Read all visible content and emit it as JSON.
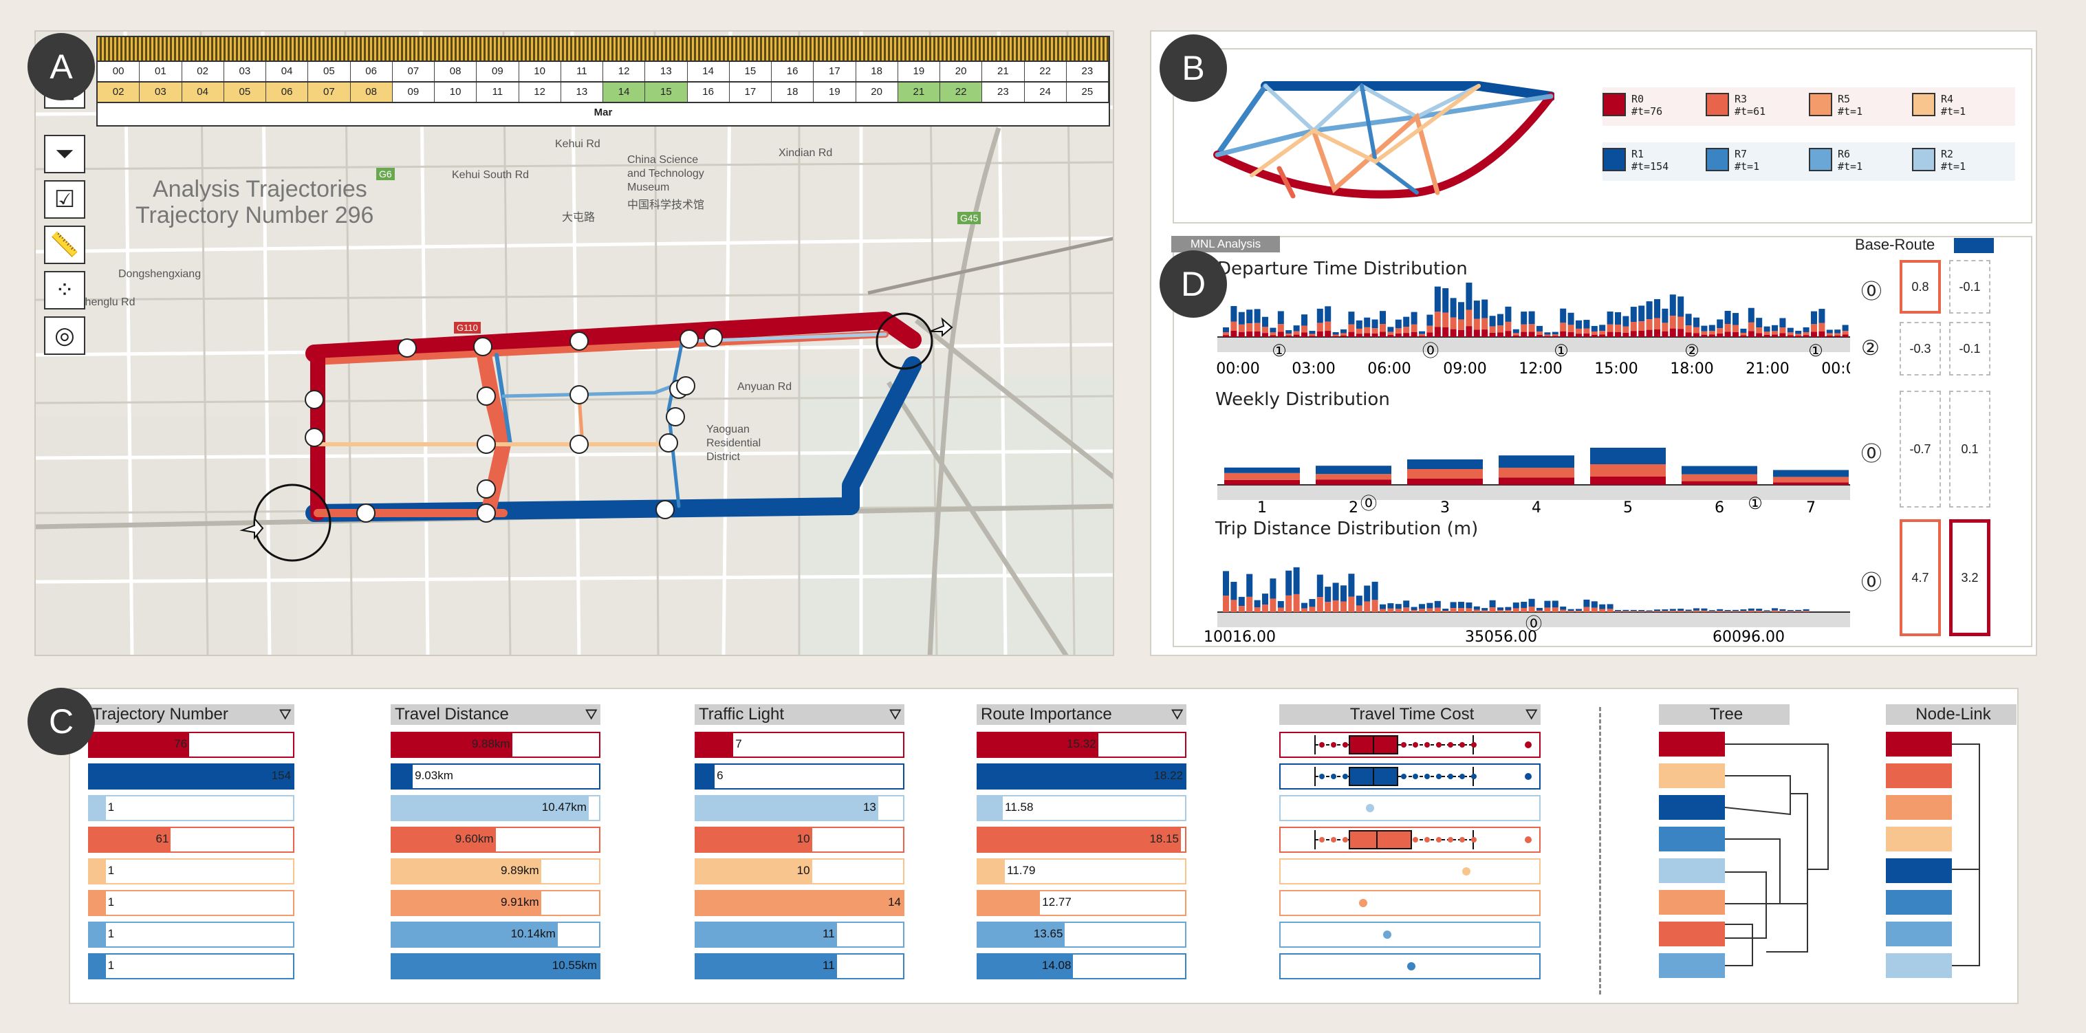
{
  "badges": {
    "a": "A",
    "b": "B",
    "c": "C",
    "d": "D"
  },
  "panel_a": {
    "title_line1": "Analysis Trajectories",
    "title_line2": "Trajectory Number  296",
    "hours_row": [
      "00",
      "01",
      "02",
      "03",
      "04",
      "05",
      "06",
      "07",
      "08",
      "09",
      "10",
      "11",
      "12",
      "13",
      "14",
      "15",
      "16",
      "17",
      "18",
      "19",
      "20",
      "21",
      "22",
      "23"
    ],
    "days_row": [
      "02",
      "03",
      "04",
      "05",
      "06",
      "07",
      "08",
      "09",
      "10",
      "11",
      "12",
      "13",
      "14",
      "15",
      "16",
      "17",
      "18",
      "19",
      "20",
      "21",
      "22",
      "23",
      "24",
      "25"
    ],
    "month": "Mar",
    "tools": [
      "camera-icon",
      "edit-icon",
      "filter-icon",
      "checkbox-icon",
      "ruler-icon",
      "cluster-icon",
      "target-icon"
    ],
    "labels": [
      {
        "id": "kehui",
        "text": "Kehui Rd"
      },
      {
        "id": "kehuisouth",
        "text": "Kehui South Rd"
      },
      {
        "id": "xindian",
        "text": "Xindian Rd"
      },
      {
        "id": "museum1",
        "text": "China Science"
      },
      {
        "id": "museum2",
        "text": "and Technology"
      },
      {
        "id": "museum3",
        "text": "Museum"
      },
      {
        "id": "museum4",
        "text": "中国科学技术馆"
      },
      {
        "id": "dadun",
        "text": "大屯路"
      },
      {
        "id": "dongsheng",
        "text": "Dongshengxiang"
      },
      {
        "id": "chenglu",
        "text": "Chenglu Rd"
      },
      {
        "id": "anyuan",
        "text": "Anyuan Rd"
      },
      {
        "id": "yaoguan1",
        "text": "Yaoguan"
      },
      {
        "id": "yaoguan2",
        "text": "Residential"
      },
      {
        "id": "yaoguan3",
        "text": "District"
      },
      {
        "id": "g6",
        "text": "G6"
      },
      {
        "id": "g45",
        "text": "G45"
      },
      {
        "id": "g110",
        "text": "G110"
      }
    ]
  },
  "panel_b": {
    "legend": [
      {
        "name": "R0",
        "count": "#t=76",
        "color": "#b2001e"
      },
      {
        "name": "R3",
        "count": "#t=61",
        "color": "#e8644a"
      },
      {
        "name": "R5",
        "count": "#t=1",
        "color": "#f39b6b"
      },
      {
        "name": "R4",
        "count": "#t=1",
        "color": "#f8c58e"
      },
      {
        "name": "R1",
        "count": "#t=154",
        "color": "#0a4f9c"
      },
      {
        "name": "R7",
        "count": "#t=1",
        "color": "#3a84c3"
      },
      {
        "name": "R6",
        "count": "#t=1",
        "color": "#6aa6d6"
      },
      {
        "name": "R2",
        "count": "#t=1",
        "color": "#a8cbe6"
      }
    ]
  },
  "panel_d": {
    "tab": "MNL Analysis",
    "base_route": "Base-Route",
    "departure_title": "Departure Time Distribution",
    "departure_ticks": [
      "00:00",
      "03:00",
      "06:00",
      "09:00",
      "12:00",
      "15:00",
      "18:00",
      "21:00",
      "00:00"
    ],
    "weekly_title": "Weekly Distribution",
    "weekly_ticks": [
      "1",
      "2",
      "3",
      "4",
      "5",
      "6",
      "7"
    ],
    "distance_title": "Trip Distance Distribution (m)",
    "distance_ticks": [
      "10016.00",
      "35056.00",
      "60096.00"
    ],
    "markers_dep": [
      "①",
      "⓪",
      "①",
      "②",
      "①"
    ],
    "markers_week": [
      "⓪",
      "①"
    ],
    "markers_dist": [
      "⓪"
    ],
    "rows": [
      {
        "marker": "⓪",
        "v1": "0.8",
        "v2": "-0.1"
      },
      {
        "marker": "②",
        "v1": "-0.3",
        "v2": "-0.1"
      },
      {
        "marker": "⓪",
        "v1": "-0.7",
        "v2": "0.1"
      },
      {
        "marker": "⓪",
        "v1": "4.7",
        "v2": "3.2"
      }
    ]
  },
  "panel_c": {
    "headers": [
      "Trajectory Number",
      "Travel Distance",
      "Traffic Light",
      "Route Importance",
      "Travel Time Cost",
      "Tree",
      "Node-Link"
    ],
    "rows": [
      {
        "color": "#b2001e",
        "traj": "76",
        "dist": "9.88km",
        "light": "7",
        "imp": "15.32"
      },
      {
        "color": "#0a4f9c",
        "traj": "154",
        "dist": "9.03km",
        "light": "6",
        "imp": "18.22"
      },
      {
        "color": "#a8cbe6",
        "traj": "1",
        "dist": "10.47km",
        "light": "13",
        "imp": "11.58"
      },
      {
        "color": "#e8644a",
        "traj": "61",
        "dist": "9.60km",
        "light": "10",
        "imp": "18.15"
      },
      {
        "color": "#f8c58e",
        "traj": "1",
        "dist": "9.89km",
        "light": "10",
        "imp": "11.79"
      },
      {
        "color": "#f39b6b",
        "traj": "1",
        "dist": "9.91km",
        "light": "14",
        "imp": "12.77"
      },
      {
        "color": "#6aa6d6",
        "traj": "1",
        "dist": "10.14km",
        "light": "11",
        "imp": "13.65"
      },
      {
        "color": "#3a84c3",
        "traj": "1",
        "dist": "10.55km",
        "light": "11",
        "imp": "14.08"
      }
    ],
    "bar_fractions": {
      "traj": [
        0.49,
        1.0,
        0.08,
        0.4,
        0.08,
        0.08,
        0.08,
        0.08
      ],
      "dist": [
        0.58,
        0.1,
        0.95,
        0.5,
        0.72,
        0.72,
        0.8,
        1.0
      ],
      "light": [
        0.18,
        0.09,
        0.88,
        0.56,
        0.56,
        1.0,
        0.68,
        0.68
      ],
      "imp": [
        0.58,
        1.0,
        0.12,
        0.98,
        0.13,
        0.3,
        0.42,
        0.46
      ]
    },
    "tree_colors": [
      "#b2001e",
      "#f8c58e",
      "#0a4f9c",
      "#3a84c3",
      "#a8cbe6",
      "#f39b6b",
      "#e8644a",
      "#6aa6d6"
    ],
    "node_colors": [
      "#b2001e",
      "#e8644a",
      "#f39b6b",
      "#f8c58e",
      "#0a4f9c",
      "#3a84c3",
      "#6aa6d6",
      "#a8cbe6"
    ]
  }
}
